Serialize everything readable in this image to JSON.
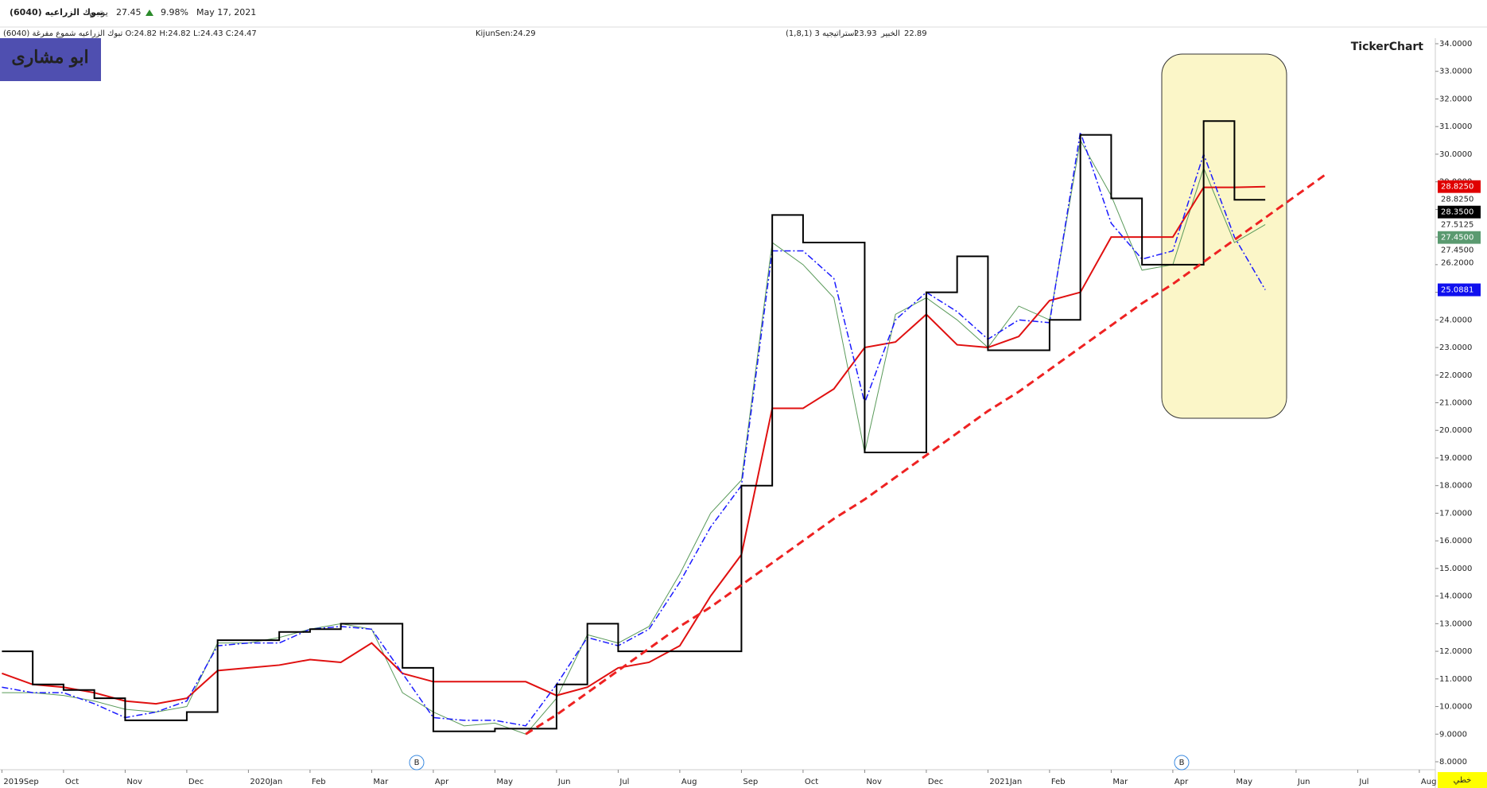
{
  "header": {
    "name": "(6040) تبوك الزراعيه",
    "period": "يومي",
    "price": "27.45",
    "change": "9.98%",
    "date": "May 17, 2021",
    "ohlc": "تبوك الزراعيه شموع مفرغة (6040) O:24.82 H:24.82 L:24.43 C:24.47",
    "kijun": "KijunSen:24.29",
    "strategy": "(1,8,1) استراتيجيه 3",
    "strategy_value": "23.93",
    "expert": "الخبير",
    "expert_value": "22.89",
    "badge": "ابو مشارى",
    "brand": "TickerChart",
    "line_mode": "خطي",
    "signals": [
      "B",
      "B"
    ]
  },
  "chart_data": {
    "type": "line",
    "categories": [
      "2019Sep",
      null,
      "Oct",
      null,
      "Nov",
      null,
      "Dec",
      null,
      "2020Jan",
      null,
      "Feb",
      null,
      "Mar",
      null,
      "Apr",
      null,
      "May",
      null,
      "Jun",
      null,
      "Jul",
      null,
      "Aug",
      null,
      "Sep",
      null,
      "Oct",
      null,
      "Nov",
      null,
      "Dec",
      null,
      "2021Jan",
      null,
      "Feb",
      null,
      "Mar",
      null,
      "Apr",
      null,
      "May",
      null,
      "Jun",
      null,
      "Jul",
      null,
      "Aug",
      null
    ],
    "series": [
      {
        "color": "#5a9a5a",
        "style": "solid",
        "width": 1,
        "values": [
          10.5,
          10.5,
          10.4,
          10.2,
          9.9,
          9.8,
          10.0,
          12.3,
          12.3,
          12.5,
          12.8,
          13.0,
          12.8,
          10.5,
          9.8,
          9.3,
          9.4,
          9.0,
          10.3,
          12.6,
          12.3,
          12.9,
          14.8,
          17.0,
          18.2,
          26.8,
          26.0,
          24.8,
          19.2,
          24.2,
          24.8,
          24.0,
          23.0,
          24.5,
          24.0,
          30.5,
          28.5,
          25.8,
          26.0,
          29.5,
          26.8,
          27.45,
          null,
          null,
          null,
          null,
          null,
          null
        ]
      },
      {
        "color": "#e01010",
        "style": "solid",
        "width": 2,
        "values": [
          11.2,
          10.8,
          10.7,
          10.5,
          10.2,
          10.1,
          10.3,
          11.3,
          11.4,
          11.5,
          11.7,
          11.6,
          12.3,
          11.2,
          10.9,
          10.9,
          10.9,
          10.9,
          10.4,
          10.7,
          11.4,
          11.6,
          12.2,
          14.0,
          15.5,
          20.8,
          20.8,
          21.5,
          23.0,
          23.2,
          24.2,
          23.1,
          23.0,
          23.4,
          24.7,
          25.0,
          27.0,
          27.0,
          27.0,
          28.8,
          28.8,
          28.825,
          null,
          null,
          null,
          null,
          null,
          null
        ]
      },
      {
        "color": "#1a1aff",
        "style": "dashdot",
        "width": 1.5,
        "values": [
          10.7,
          10.5,
          10.5,
          10.1,
          9.6,
          9.8,
          10.2,
          12.2,
          12.3,
          12.3,
          12.8,
          12.9,
          12.8,
          11.2,
          9.6,
          9.5,
          9.5,
          9.3,
          10.8,
          12.5,
          12.2,
          12.8,
          14.5,
          16.5,
          18.0,
          26.5,
          26.5,
          25.5,
          21.0,
          24.0,
          25.0,
          24.3,
          23.3,
          24.0,
          23.9,
          30.8,
          27.5,
          26.2,
          26.5,
          30.0,
          27.0,
          25.0881,
          null,
          null,
          null,
          null,
          null,
          null
        ]
      },
      {
        "color": "#000000",
        "style": "step",
        "width": 2,
        "values": [
          12.0,
          10.8,
          10.6,
          10.3,
          9.5,
          9.5,
          9.8,
          12.4,
          12.4,
          12.7,
          12.8,
          13.0,
          13.0,
          11.4,
          9.1,
          9.1,
          9.2,
          9.2,
          10.8,
          13.0,
          12.0,
          12.0,
          12.0,
          12.0,
          18.0,
          27.8,
          26.8,
          26.8,
          19.2,
          19.2,
          25.0,
          26.3,
          22.9,
          22.9,
          24.0,
          30.7,
          28.4,
          26.0,
          26.0,
          31.2,
          28.35,
          28.35,
          null,
          null,
          null,
          null,
          null,
          null
        ]
      },
      {
        "color": "#ee2222",
        "style": "dashed",
        "width": 3,
        "values": [
          null,
          null,
          null,
          null,
          null,
          null,
          null,
          null,
          null,
          null,
          null,
          null,
          null,
          null,
          null,
          null,
          null,
          9.0,
          9.7,
          10.5,
          11.3,
          12.1,
          12.9,
          13.6,
          14.4,
          15.2,
          16.0,
          16.8,
          17.5,
          18.3,
          19.1,
          19.9,
          20.7,
          21.4,
          22.2,
          23.0,
          23.8,
          24.6,
          25.3,
          26.1,
          26.9,
          27.7,
          28.5,
          29.3,
          null,
          null,
          null,
          null
        ]
      }
    ],
    "ylim": [
      8,
      34
    ],
    "yticks": [
      {
        "value": 8,
        "label": "8.0000"
      },
      {
        "value": 9,
        "label": "9.0000"
      },
      {
        "value": 10,
        "label": "10.0000"
      },
      {
        "value": 11,
        "label": "11.0000"
      },
      {
        "value": 12,
        "label": "12.0000"
      },
      {
        "value": 13,
        "label": "13.0000"
      },
      {
        "value": 14,
        "label": "14.0000"
      },
      {
        "value": 15,
        "label": "15.0000"
      },
      {
        "value": 16,
        "label": "16.0000"
      },
      {
        "value": 17,
        "label": "17.0000"
      },
      {
        "value": 18,
        "label": "18.0000"
      },
      {
        "value": 19,
        "label": "19.0000"
      },
      {
        "value": 20,
        "label": "20.0000"
      },
      {
        "value": 21,
        "label": "21.0000"
      },
      {
        "value": 22,
        "label": "22.0000"
      },
      {
        "value": 23,
        "label": "23.0000"
      },
      {
        "value": 24,
        "label": "24.0000"
      },
      {
        "value": 25,
        "label": "25.0000"
      },
      {
        "value": 26,
        "label": "26.0000"
      },
      {
        "value": 27,
        "label": "27.0000"
      },
      {
        "value": 28,
        "label": "28.0000"
      },
      {
        "value": 29,
        "label": "29.0000"
      },
      {
        "value": 30,
        "label": "30.0000"
      },
      {
        "value": 31,
        "label": "31.0000"
      },
      {
        "value": 32,
        "label": "32.0000"
      },
      {
        "value": 33,
        "label": "33.0000"
      },
      {
        "value": 34,
        "label": "34.0000"
      }
    ],
    "price_markers": [
      {
        "value": 28.825,
        "label": "28.8250",
        "color": "#e00000"
      },
      {
        "value": 28.825,
        "label": "28.8250",
        "color": "none"
      },
      {
        "value": 28.35,
        "label": "28.3500",
        "color": "#000000"
      },
      {
        "value": 27.5125,
        "label": "27.5125",
        "color": "none"
      },
      {
        "value": 27.45,
        "label": "27.4500",
        "color": "#5a9a70"
      },
      {
        "value": 27.45,
        "label": "27.4500",
        "color": "none"
      },
      {
        "value": 26.2,
        "label": "26.2000",
        "color": "none"
      },
      {
        "value": 25.0881,
        "label": "25.0881",
        "color": "#1010ee"
      }
    ]
  }
}
